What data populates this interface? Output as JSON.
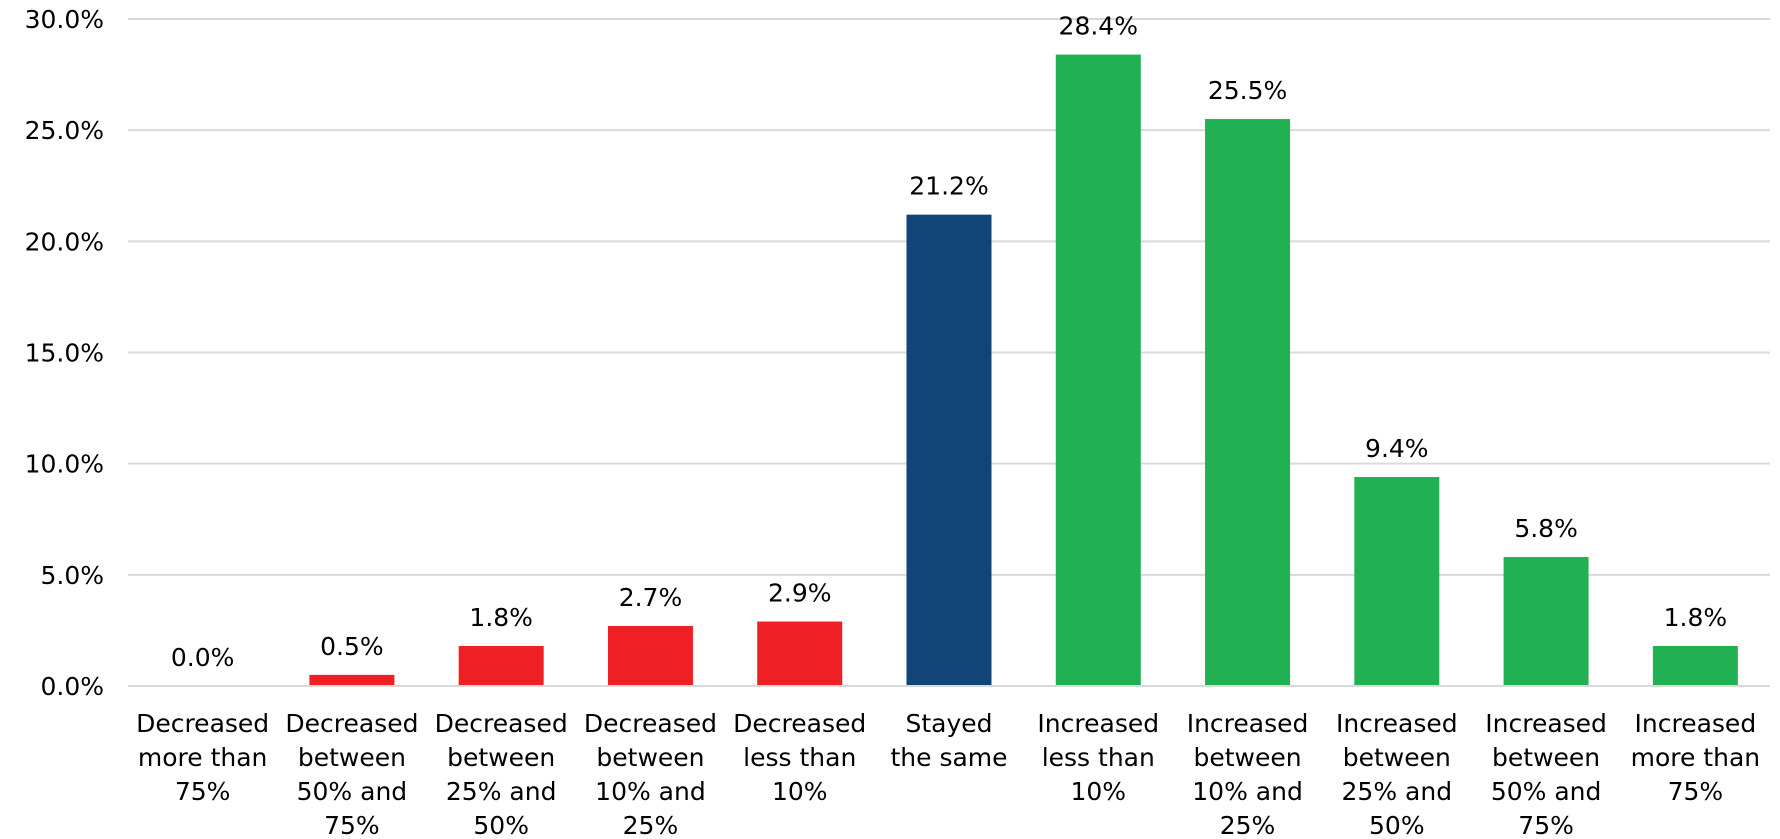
{
  "chart_data": {
    "type": "bar",
    "title": "",
    "xlabel": "",
    "ylabel": "",
    "ylim": [
      0,
      30
    ],
    "yticks": [
      "0.0%",
      "5.0%",
      "10.0%",
      "15.0%",
      "20.0%",
      "25.0%",
      "30.0%"
    ],
    "grid": true,
    "legend": "none",
    "categories": [
      [
        "Decreased",
        "more than",
        "75%"
      ],
      [
        "Decreased",
        "between",
        "50% and",
        "75%"
      ],
      [
        "Decreased",
        "between",
        "25% and",
        "50%"
      ],
      [
        "Decreased",
        "between",
        "10% and",
        "25%"
      ],
      [
        "Decreased",
        "less than",
        "10%"
      ],
      [
        "Stayed",
        "the same"
      ],
      [
        "Increased",
        "less than",
        "10%"
      ],
      [
        "Increased",
        "between",
        "10% and",
        "25%"
      ],
      [
        "Increased",
        "between",
        "25% and",
        "50%"
      ],
      [
        "Increased",
        "between",
        "50% and",
        "75%"
      ],
      [
        "Increased",
        "more than",
        "75%"
      ]
    ],
    "values": [
      0.0,
      0.5,
      1.8,
      2.7,
      2.9,
      21.2,
      28.4,
      25.5,
      9.4,
      5.8,
      1.8
    ],
    "data_labels": [
      "0.0%",
      "0.5%",
      "1.8%",
      "2.7%",
      "2.9%",
      "21.2%",
      "28.4%",
      "25.5%",
      "9.4%",
      "5.8%",
      "1.8%"
    ],
    "bar_colors": [
      "#ee2026",
      "#ee2026",
      "#ee2026",
      "#ee2026",
      "#ee2026",
      "#124577",
      "#21b152",
      "#21b152",
      "#21b152",
      "#21b152",
      "#21b152"
    ],
    "gridline_color": "#d9d9d9"
  }
}
